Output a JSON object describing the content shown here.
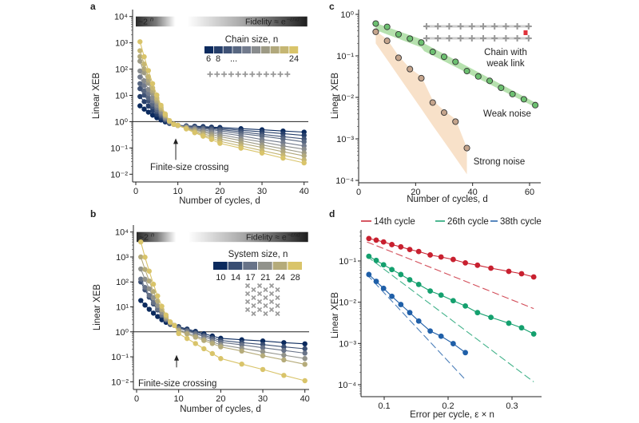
{
  "panel_labels": {
    "a": "a",
    "b": "b",
    "c": "c",
    "d": "d"
  },
  "chart_data": [
    {
      "panel": "a",
      "type": "line",
      "xlabel": "Number of cycles, d",
      "ylabel": "Linear XEB",
      "yscale": "log",
      "xlim": [
        0,
        40
      ],
      "ylim": [
        0.01,
        10000
      ],
      "xticks": [
        "0",
        "10",
        "20",
        "30",
        "40"
      ],
      "yticks": [
        "10⁴",
        "10³",
        "10²",
        "10¹",
        "10⁰",
        "10⁻¹",
        "10⁻²"
      ],
      "reference_line_y": 1,
      "header": {
        "left_base": "~2",
        "left_exp": "n",
        "right_base": "Fidelity ≈ e",
        "right_exp": "−εnd"
      },
      "legend": {
        "title": "Chain size, n",
        "labels": [
          "6",
          "8",
          "...",
          "24"
        ],
        "swatch_count": 10
      },
      "annotation": "Finite-size crossing",
      "colormap": [
        "#0b2a5e",
        "#7f8593",
        "#d9c46a"
      ],
      "x": [
        1,
        2,
        3,
        4,
        5,
        6,
        7,
        8,
        9,
        10,
        12,
        14,
        16,
        18,
        20,
        25,
        30,
        35,
        40
      ],
      "series": [
        {
          "size": 6,
          "values": [
            4.0,
            3.0,
            2.3,
            1.77,
            1.41,
            1.16,
            0.98,
            0.86,
            0.8,
            0.72,
            0.69,
            0.67,
            0.65,
            0.62,
            0.6,
            0.54,
            0.49,
            0.44,
            0.4
          ]
        },
        {
          "size": 8,
          "values": [
            9.0,
            5.8,
            3.9,
            2.6,
            1.88,
            1.4,
            1.08,
            0.89,
            0.8,
            0.72,
            0.68,
            0.65,
            0.61,
            0.58,
            0.55,
            0.47,
            0.41,
            0.35,
            0.3
          ]
        },
        {
          "size": 10,
          "values": [
            18,
            10.2,
            6.1,
            3.7,
            2.4,
            1.64,
            1.18,
            0.92,
            0.8,
            0.72,
            0.67,
            0.62,
            0.58,
            0.54,
            0.5,
            0.41,
            0.33,
            0.27,
            0.22
          ]
        },
        {
          "size": 12,
          "values": [
            28,
            14.7,
            8.1,
            4.6,
            2.8,
            1.81,
            1.25,
            0.94,
            0.8,
            0.72,
            0.65,
            0.6,
            0.54,
            0.49,
            0.45,
            0.35,
            0.28,
            0.22,
            0.17
          ]
        },
        {
          "size": 14,
          "values": [
            50,
            23.5,
            11.7,
            6.2,
            3.5,
            2.07,
            1.34,
            0.96,
            0.8,
            0.72,
            0.63,
            0.56,
            0.49,
            0.43,
            0.38,
            0.29,
            0.21,
            0.16,
            0.12
          ]
        },
        {
          "size": 16,
          "values": [
            85,
            36,
            16.6,
            8.0,
            4.2,
            2.34,
            1.43,
            0.98,
            0.8,
            0.72,
            0.61,
            0.52,
            0.44,
            0.38,
            0.32,
            0.23,
            0.17,
            0.12,
            0.09
          ]
        },
        {
          "size": 18,
          "values": [
            200,
            73,
            29,
            12.2,
            5.6,
            2.85,
            1.6,
            1.02,
            0.8,
            0.72,
            0.59,
            0.49,
            0.4,
            0.33,
            0.27,
            0.19,
            0.13,
            0.093,
            0.065
          ]
        },
        {
          "size": 20,
          "values": [
            300,
            102,
            38,
            15,
            6.5,
            3.1,
            1.68,
            1.04,
            0.8,
            0.72,
            0.57,
            0.45,
            0.35,
            0.28,
            0.22,
            0.15,
            0.105,
            0.072,
            0.05
          ]
        },
        {
          "size": 22,
          "values": [
            500,
            155,
            52,
            19.2,
            7.8,
            3.5,
            1.79,
            1.06,
            0.8,
            0.72,
            0.55,
            0.41,
            0.31,
            0.24,
            0.18,
            0.12,
            0.079,
            0.053,
            0.035
          ]
        },
        {
          "size": 24,
          "values": [
            1100,
            295,
            88,
            28,
            10.3,
            4.2,
            1.97,
            1.1,
            0.8,
            0.72,
            0.53,
            0.38,
            0.28,
            0.21,
            0.15,
            0.098,
            0.064,
            0.041,
            0.027
          ]
        }
      ]
    },
    {
      "panel": "b",
      "type": "line",
      "xlabel": "Number of cycles, d",
      "ylabel": "Linear XEB",
      "yscale": "log",
      "xlim": [
        0,
        40
      ],
      "ylim": [
        0.01,
        10000
      ],
      "xticks": [
        "0",
        "10",
        "20",
        "30",
        "40"
      ],
      "yticks": [
        "10⁴",
        "10³",
        "10²",
        "10¹",
        "10⁰",
        "10⁻¹",
        "10⁻²"
      ],
      "reference_line_y": 1,
      "header": {
        "left_base": "~2",
        "left_exp": "n",
        "right_base": "Fidelity ≈ e",
        "right_exp": "−εnd"
      },
      "legend": {
        "title": "System size, n",
        "labels": [
          "10",
          "14",
          "17",
          "21",
          "24",
          "28"
        ]
      },
      "annotation": "Finite-size crossing",
      "colormap": [
        "#0b2a5e",
        "#7f8593",
        "#d9c46a"
      ],
      "x": [
        1,
        2,
        3,
        4,
        5,
        6,
        7,
        8,
        9,
        10,
        12,
        14,
        16,
        18,
        20,
        25,
        30,
        35,
        40
      ],
      "series": [
        {
          "size": 10,
          "values": [
            18,
            11.8,
            8.0,
            5.6,
            4.1,
            3.05,
            2.4,
            1.99,
            1.8,
            1.6,
            1.29,
            1.04,
            0.84,
            0.68,
            0.55,
            0.48,
            0.43,
            0.37,
            0.33
          ]
        },
        {
          "size": 14,
          "values": [
            100,
            48,
            24.5,
            13.1,
            7.5,
            4.5,
            2.97,
            2.15,
            1.8,
            1.5,
            1.18,
            0.93,
            0.73,
            0.57,
            0.45,
            0.37,
            0.31,
            0.25,
            0.21
          ]
        },
        {
          "size": 17,
          "values": [
            130,
            60,
            29,
            14.9,
            8.2,
            4.8,
            3.07,
            2.17,
            1.8,
            1.4,
            1.08,
            0.83,
            0.64,
            0.49,
            0.38,
            0.3,
            0.23,
            0.18,
            0.14
          ]
        },
        {
          "size": 21,
          "values": [
            330,
            128,
            53,
            23.6,
            11.4,
            6.0,
            3.45,
            2.26,
            1.8,
            1.2,
            0.91,
            0.69,
            0.52,
            0.4,
            0.3,
            0.22,
            0.16,
            0.116,
            0.085
          ]
        },
        {
          "size": 24,
          "values": [
            1000,
            316,
            109,
            41,
            16.9,
            7.7,
            3.96,
            2.38,
            1.8,
            1.1,
            0.82,
            0.61,
            0.45,
            0.34,
            0.25,
            0.17,
            0.11,
            0.075,
            0.05
          ]
        },
        {
          "size": 28,
          "values": [
            4000,
            980,
            270,
            81,
            27.5,
            10.6,
            4.7,
            2.52,
            1.8,
            0.85,
            0.54,
            0.34,
            0.21,
            0.135,
            0.085,
            0.051,
            0.031,
            0.018,
            0.011
          ]
        }
      ]
    },
    {
      "panel": "c",
      "type": "scatter",
      "xlabel": "Number of cycles, d",
      "ylabel": "Linear XEB",
      "yscale": "log",
      "xlim": [
        0,
        63
      ],
      "ylim": [
        0.0001,
        1
      ],
      "xticks": [
        "0",
        "20",
        "40",
        "60"
      ],
      "yticks": [
        "10⁰",
        "10⁻¹",
        "10⁻²",
        "10⁻³",
        "10⁻⁴"
      ],
      "inset_label": [
        "Chain with",
        "weak link"
      ],
      "inset_weak_link_color": "#e0333c",
      "series": [
        {
          "label": "Weak noise",
          "color": "#6cc070",
          "band_color": "#a9dca0",
          "x": [
            6,
            10,
            14,
            18,
            22,
            26,
            30,
            34,
            38,
            42,
            46,
            50,
            54,
            58,
            62
          ],
          "values": [
            0.6,
            0.5,
            0.33,
            0.26,
            0.21,
            0.125,
            0.095,
            0.072,
            0.043,
            0.032,
            0.025,
            0.017,
            0.012,
            0.009,
            0.0065
          ],
          "band": {
            "x": [
              6,
              22,
              23,
              62
            ],
            "low": [
              0.42,
              0.16,
              0.13,
              0.0058
            ],
            "high": [
              0.62,
              0.25,
              0.2,
              0.0075
            ]
          }
        },
        {
          "label": "Strong noise",
          "color": "#c4a48c",
          "band_color": "#f7dcbf",
          "x": [
            6,
            10,
            14,
            18,
            22,
            26,
            30,
            34,
            38
          ],
          "values": [
            0.38,
            0.23,
            0.09,
            0.048,
            0.029,
            0.0075,
            0.0043,
            0.0026,
            0.0006
          ],
          "band": {
            "x": [
              6,
              10,
              14,
              18,
              22,
              26,
              30,
              34,
              38
            ],
            "low": [
              0.2,
              0.081,
              0.0325,
              0.0131,
              0.0053,
              0.0021,
              0.00086,
              0.00035,
              0.00014
            ],
            "high": [
              0.4,
              0.25,
              0.1,
              0.05,
              0.032,
              0.0085,
              0.0048,
              0.003,
              0.0006
            ]
          }
        }
      ]
    },
    {
      "panel": "d",
      "type": "line",
      "xlabel": "Error per cycle, ε × n",
      "ylabel": "Linear XEB",
      "yscale": "log",
      "xlim": [
        0.064,
        0.346
      ],
      "ylim": [
        5e-05,
        0.5
      ],
      "xticks": [
        "0.1",
        "0.2",
        "0.3"
      ],
      "xtick_values": [
        0.1,
        0.2,
        0.3
      ],
      "yticks": [
        "10⁻¹",
        "10⁻²",
        "10⁻³",
        "10⁻⁴"
      ],
      "legend_position": "top",
      "series": [
        {
          "name": "14th cycle",
          "color": "#c8202f",
          "x": [
            0.076,
            0.0875,
            0.099,
            0.112,
            0.126,
            0.14,
            0.154,
            0.172,
            0.189,
            0.208,
            0.227,
            0.246,
            0.267,
            0.295,
            0.315,
            0.334
          ],
          "values": [
            0.35,
            0.32,
            0.29,
            0.25,
            0.22,
            0.19,
            0.17,
            0.14,
            0.125,
            0.109,
            0.09,
            0.079,
            0.067,
            0.056,
            0.049,
            0.041
          ],
          "dashed": {
            "x": [
              0.073,
              0.334
            ],
            "values": [
              0.29,
              0.007
            ]
          }
        },
        {
          "name": "26th cycle",
          "color": "#14a06e",
          "x": [
            0.076,
            0.0875,
            0.099,
            0.112,
            0.126,
            0.14,
            0.154,
            0.172,
            0.189,
            0.208,
            0.227,
            0.246,
            0.267,
            0.295,
            0.315,
            0.334
          ],
          "values": [
            0.13,
            0.103,
            0.081,
            0.062,
            0.047,
            0.035,
            0.027,
            0.0187,
            0.0149,
            0.0109,
            0.0081,
            0.0056,
            0.0043,
            0.0031,
            0.0024,
            0.0017
          ],
          "dashed": {
            "x": [
              0.073,
              0.334
            ],
            "values": [
              0.13,
              0.000117
            ]
          }
        },
        {
          "name": "38th cycle",
          "color": "#1f5fa8",
          "x": [
            0.076,
            0.0875,
            0.099,
            0.112,
            0.126,
            0.14,
            0.154,
            0.172,
            0.189,
            0.208,
            0.227
          ],
          "values": [
            0.047,
            0.032,
            0.0217,
            0.0139,
            0.0088,
            0.0056,
            0.0035,
            0.002,
            0.0015,
            0.00099,
            0.0006
          ],
          "dashed": {
            "x": [
              0.073,
              0.2275
            ],
            "values": [
              0.047,
              0.00013
            ]
          }
        }
      ]
    }
  ]
}
